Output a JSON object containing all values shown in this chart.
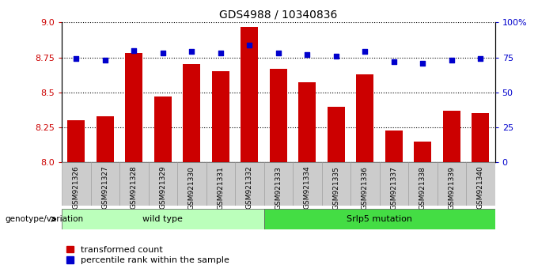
{
  "title": "GDS4988 / 10340836",
  "samples": [
    "GSM921326",
    "GSM921327",
    "GSM921328",
    "GSM921329",
    "GSM921330",
    "GSM921331",
    "GSM921332",
    "GSM921333",
    "GSM921334",
    "GSM921335",
    "GSM921336",
    "GSM921337",
    "GSM921338",
    "GSM921339",
    "GSM921340"
  ],
  "transformed_count": [
    8.3,
    8.33,
    8.78,
    8.47,
    8.7,
    8.65,
    8.97,
    8.67,
    8.57,
    8.4,
    8.63,
    8.23,
    8.15,
    8.37,
    8.35
  ],
  "percentile_rank": [
    74,
    73,
    80,
    78,
    79,
    78,
    84,
    78,
    77,
    76,
    79,
    72,
    71,
    73,
    74
  ],
  "ylim_left": [
    8.0,
    9.0
  ],
  "ylim_right": [
    0,
    100
  ],
  "yticks_left": [
    8.0,
    8.25,
    8.5,
    8.75,
    9.0
  ],
  "yticks_right": [
    0,
    25,
    50,
    75,
    100
  ],
  "bar_color": "#cc0000",
  "dot_color": "#0000cc",
  "wild_type_samples": 7,
  "wild_type_label": "wild type",
  "mutation_label": "Srlp5 mutation",
  "wild_type_color": "#bbffbb",
  "mutation_color": "#44dd44",
  "genotype_label": "genotype/variation",
  "legend_bar_label": "transformed count",
  "legend_dot_label": "percentile rank within the sample",
  "hline_color": "#000000",
  "background_color": "#ffffff",
  "xtick_bg_color": "#cccccc"
}
